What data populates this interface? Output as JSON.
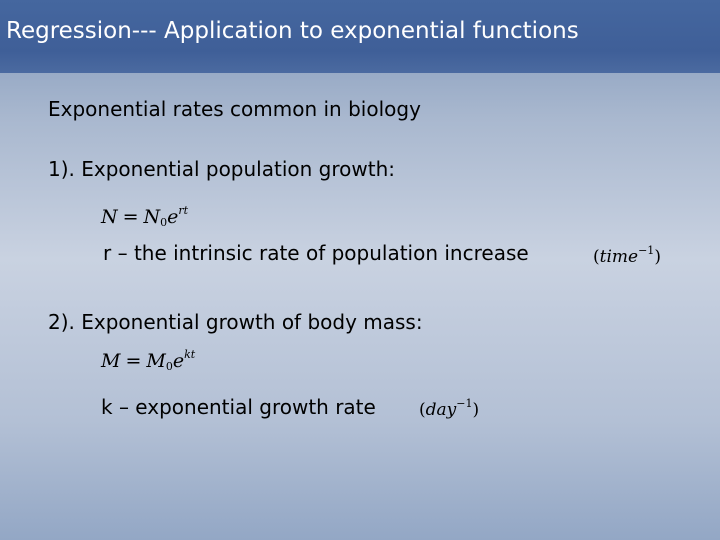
{
  "slide": {
    "title": "Regression--- Application to exponential functions",
    "heading": "Exponential rates common in biology",
    "items": [
      {
        "label": "1).  Exponential population growth:",
        "equation": {
          "lhs": "N",
          "equals": "=",
          "base": "N",
          "subscript": "0",
          "e": "e",
          "exponent": "rt"
        },
        "definition": "r – the intrinsic rate of population increase",
        "unit": {
          "open": "(",
          "name": "time",
          "power": "−1",
          "close": ")"
        }
      },
      {
        "label": "2).  Exponential growth of body mass:",
        "equation": {
          "lhs": "M",
          "equals": "=",
          "base": "M",
          "subscript": "0",
          "e": "e",
          "exponent": "kt"
        },
        "definition": "k – exponential growth rate",
        "unit": {
          "open": "(",
          "name": "day",
          "power": "−1",
          "close": ")"
        }
      }
    ]
  }
}
